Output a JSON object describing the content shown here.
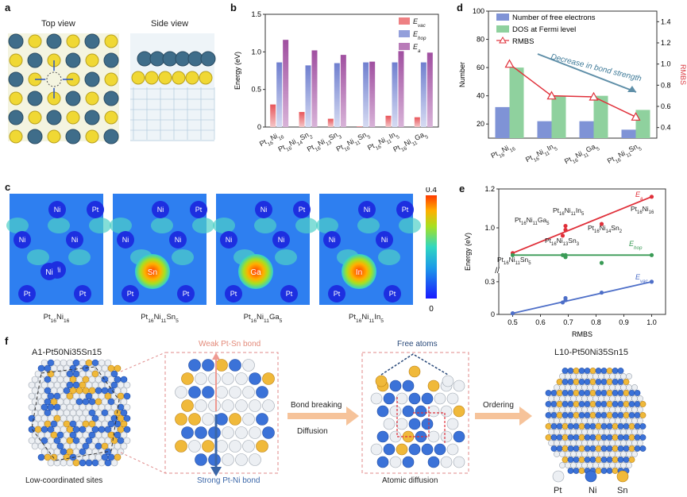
{
  "panels": {
    "a": {
      "label": "a",
      "top_view": "Top view",
      "side_view": "Side view"
    },
    "b": {
      "label": "b",
      "ylabel": "Energy (eV)",
      "yticks": [
        "0",
        "0.5",
        "1.0",
        "1.5"
      ],
      "legend": [
        "E_vac",
        "E_hop",
        "E_a"
      ],
      "legend_colors": [
        "#e8555a",
        "#6f7fcf",
        "#a04fa0"
      ],
      "categories": [
        "Pt16Ni16",
        "Pt16Ni14Sn2",
        "Pt16Ni13Sn3",
        "Pt16Ni11Sn5",
        "Pt16Ni11In5",
        "Pt16Ni11Ga5"
      ],
      "cat_main": [
        "Pt",
        "Pt",
        "Pt",
        "Pt",
        "Pt",
        "Pt"
      ],
      "cat_sub1": [
        "16",
        "16",
        "16",
        "16",
        "16",
        "16"
      ],
      "cat_mid": [
        "Ni",
        "Ni",
        "Ni",
        "Ni",
        "Ni",
        "Ni"
      ],
      "cat_sub2": [
        "16",
        "14",
        "13",
        "11",
        "11",
        "11"
      ],
      "cat_el": [
        "",
        "Sn",
        "Sn",
        "Sn",
        "In",
        "Ga"
      ],
      "cat_sub3": [
        "",
        "2",
        "3",
        "5",
        "5",
        "5"
      ]
    },
    "c": {
      "label": "c",
      "colorbar_max": "0.4",
      "colorbar_min": "0",
      "maps": [
        {
          "center": "Ni",
          "atoms": [
            "Ni",
            "Pt",
            "Ni",
            "Ni",
            "Ni",
            "Pt",
            "Pt"
          ],
          "caption": "Pt16Ni16"
        },
        {
          "center": "Sn",
          "atoms": [
            "Ni",
            "Pt",
            "Ni",
            "Ni",
            "Ni",
            "Pt",
            "Pt"
          ],
          "caption": "Pt16Ni11Sn5"
        },
        {
          "center": "Ga",
          "atoms": [
            "Ni",
            "Pt",
            "Ni",
            "Ni",
            "Ni",
            "Pt",
            "Pt"
          ],
          "caption": "Pt16Ni11Ga5"
        },
        {
          "center": "In",
          "atoms": [
            "Ni",
            "Pt",
            "Ni",
            "Ni",
            "Ni",
            "Pt",
            "Pt"
          ],
          "caption": "Pt16Ni11In5"
        }
      ]
    },
    "d": {
      "label": "d",
      "ylabel_left": "Number",
      "ylabel_right": "RMBS",
      "yticks_left": [
        "20",
        "40",
        "60",
        "80",
        "100"
      ],
      "yticks_right": [
        "0.4",
        "0.6",
        "0.8",
        "1.0",
        "1.2",
        "1.4"
      ],
      "legend": [
        "Number of free electrons",
        "DOS at Fermi level",
        "RMBS"
      ],
      "arrow_text": "Decrease in bond strength",
      "categories": [
        "Pt16Ni16",
        "Pt16Ni11In5",
        "Pt16Ni11Ga5",
        "Pt16Ni11Sn5"
      ]
    },
    "e": {
      "label": "e",
      "ylabel": "Energy (eV)",
      "xlabel": "RMBS",
      "xticks": [
        "0.5",
        "0.6",
        "0.7",
        "0.8",
        "0.9",
        "1.0"
      ],
      "yticks_top": [
        "1.0",
        "1.2"
      ],
      "yticks_bottom": [
        "0",
        "0.3"
      ],
      "series_labels": [
        "E_a",
        "E_hop",
        "E_vac"
      ],
      "annotations": [
        "Pt16Ni11In5",
        "Pt16Ni11Ga5",
        "Pt16Ni14Sn2",
        "Pt16Ni13Sn3",
        "Pt16Ni16",
        "Pt16Ni11Sn5"
      ]
    },
    "f": {
      "label": "f",
      "a1_title": "A1-Pt50Ni35Sn15",
      "l10_title": "L10-Pt50Ni35Sn15",
      "weak_bond": "Weak Pt-Sn bond",
      "strong_bond": "Strong Pt-Ni bond",
      "low_coord": "Low-coordinated sites",
      "free_atoms": "Free atoms",
      "atomic_diffusion": "Atomic diffusion",
      "step1_top": "Bond breaking",
      "step1_bottom": "Diffusion",
      "step2": "Ordering",
      "legend": [
        "Pt",
        "Ni",
        "Sn"
      ]
    }
  },
  "chart_data": [
    {
      "type": "bar",
      "panel": "b",
      "title": "",
      "ylabel": "Energy (eV)",
      "ylim": [
        0,
        1.5
      ],
      "categories": [
        "Pt16Ni16",
        "Pt16Ni14Sn2",
        "Pt16Ni13Sn3",
        "Pt16Ni11Sn5",
        "Pt16Ni11In5",
        "Pt16Ni11Ga5"
      ],
      "series": [
        {
          "name": "E_vac",
          "values": [
            0.3,
            0.2,
            0.11,
            0.01,
            0.15,
            0.13
          ]
        },
        {
          "name": "E_hop",
          "values": [
            0.86,
            0.82,
            0.85,
            0.86,
            0.86,
            0.86
          ]
        },
        {
          "name": "E_a",
          "values": [
            1.16,
            1.02,
            0.96,
            0.87,
            1.01,
            0.99
          ]
        }
      ]
    },
    {
      "type": "bar",
      "panel": "d",
      "ylabel": "Number",
      "ylim": [
        10,
        100
      ],
      "y2label": "RMBS",
      "y2lim": [
        0.3,
        1.5
      ],
      "categories": [
        "Pt16Ni16",
        "Pt16Ni11In5",
        "Pt16Ni11Ga5",
        "Pt16Ni11Sn5"
      ],
      "series": [
        {
          "name": "Number of free electrons",
          "values": [
            32,
            22,
            22,
            16
          ]
        },
        {
          "name": "DOS at Fermi level",
          "values": [
            60,
            40,
            40,
            30
          ]
        },
        {
          "name": "RMBS",
          "axis": "right",
          "values": [
            1.0,
            0.7,
            0.69,
            0.5
          ]
        }
      ]
    },
    {
      "type": "scatter",
      "panel": "e",
      "xlabel": "RMBS",
      "ylabel": "Energy (eV)",
      "xlim": [
        0.45,
        1.05
      ],
      "series": [
        {
          "name": "E_a",
          "x": [
            1.0,
            0.82,
            0.69,
            0.69,
            0.68,
            0.5
          ],
          "y": [
            1.16,
            1.02,
            0.99,
            1.01,
            0.96,
            0.87
          ]
        },
        {
          "name": "E_hop",
          "x": [
            1.0,
            0.82,
            0.69,
            0.69,
            0.68,
            0.5
          ],
          "y": [
            0.86,
            0.82,
            0.85,
            0.86,
            0.86,
            0.86
          ]
        },
        {
          "name": "E_vac",
          "x": [
            1.0,
            0.82,
            0.69,
            0.69,
            0.68,
            0.5
          ],
          "y": [
            0.3,
            0.2,
            0.15,
            0.13,
            0.11,
            0.01
          ]
        }
      ]
    }
  ]
}
